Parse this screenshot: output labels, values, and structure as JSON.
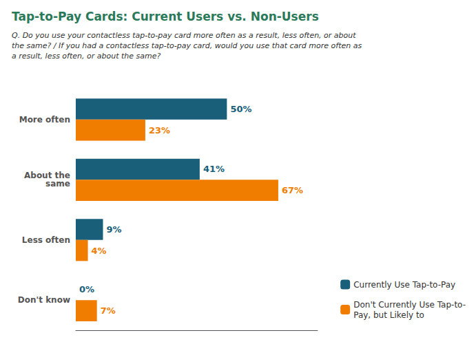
{
  "chart_data": {
    "type": "bar",
    "orientation": "horizontal",
    "title": "Tap-to-Pay Cards: Current Users vs. Non-Users",
    "subtitle": "Q. Do you use your contactless tap-to-pay card more often as a result, less often, or about\nthe same? / If you had a contactless tap-to-pay card, would you use that card more often as\na result, less often, or about the same?",
    "categories": [
      "More often",
      "About the\nsame",
      "Less often",
      "Don't know"
    ],
    "series": [
      {
        "name": "Currently Use Tap-to-Pay",
        "color": "#1a5f7a",
        "values": [
          50,
          41,
          9,
          0
        ],
        "value_labels": [
          "50%",
          "41%",
          "9%",
          "0%"
        ]
      },
      {
        "name": "Don't Currently Use Tap-to-\nPay, but Likely to",
        "color": "#f07d00",
        "values": [
          23,
          67,
          4,
          7
        ],
        "value_labels": [
          "23%",
          "67%",
          "4%",
          "7%"
        ]
      }
    ],
    "xlim": [
      0,
      80
    ],
    "data_labels": true,
    "tick_labels": "y",
    "grid": false,
    "legend": "lower right"
  }
}
